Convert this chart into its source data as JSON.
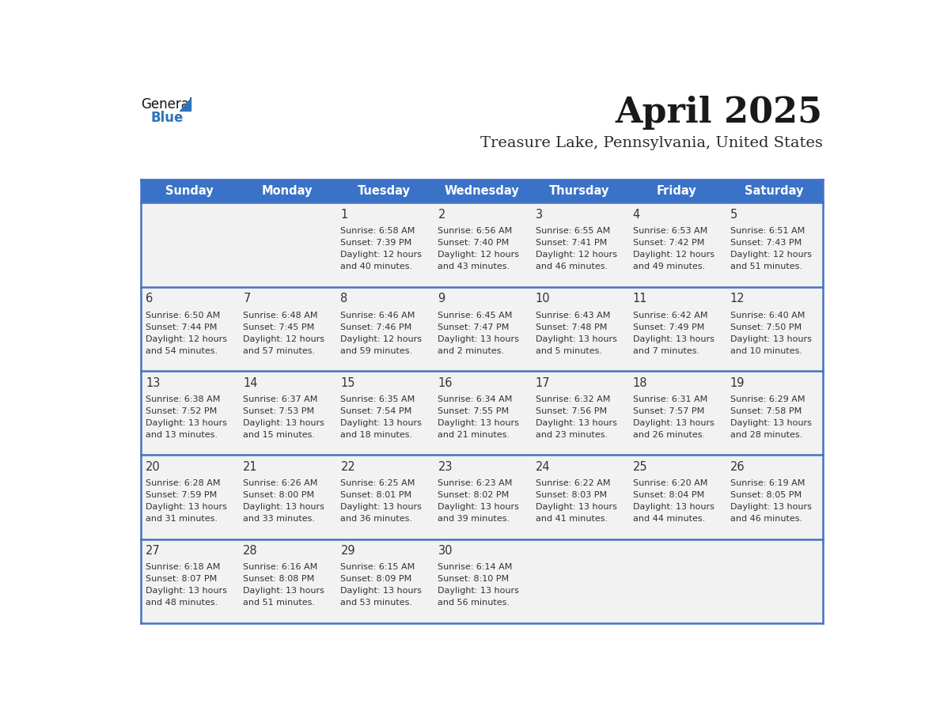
{
  "title": "April 2025",
  "subtitle": "Treasure Lake, Pennsylvania, United States",
  "day_names": [
    "Sunday",
    "Monday",
    "Tuesday",
    "Wednesday",
    "Thursday",
    "Friday",
    "Saturday"
  ],
  "header_color": "#3A72C8",
  "separator_color": "#4472C4",
  "row_bg": "#F2F2F2",
  "text_color": "#333333",
  "header_text_color": "#FFFFFF",
  "logo_triangle_color": "#2E75B6",
  "days": [
    {
      "day": "1",
      "col": 2,
      "row": 0,
      "sunrise": "Sunrise: 6:58 AM",
      "sunset": "Sunset: 7:39 PM",
      "dl1": "Daylight: 12 hours",
      "dl2": "and 40 minutes."
    },
    {
      "day": "2",
      "col": 3,
      "row": 0,
      "sunrise": "Sunrise: 6:56 AM",
      "sunset": "Sunset: 7:40 PM",
      "dl1": "Daylight: 12 hours",
      "dl2": "and 43 minutes."
    },
    {
      "day": "3",
      "col": 4,
      "row": 0,
      "sunrise": "Sunrise: 6:55 AM",
      "sunset": "Sunset: 7:41 PM",
      "dl1": "Daylight: 12 hours",
      "dl2": "and 46 minutes."
    },
    {
      "day": "4",
      "col": 5,
      "row": 0,
      "sunrise": "Sunrise: 6:53 AM",
      "sunset": "Sunset: 7:42 PM",
      "dl1": "Daylight: 12 hours",
      "dl2": "and 49 minutes."
    },
    {
      "day": "5",
      "col": 6,
      "row": 0,
      "sunrise": "Sunrise: 6:51 AM",
      "sunset": "Sunset: 7:43 PM",
      "dl1": "Daylight: 12 hours",
      "dl2": "and 51 minutes."
    },
    {
      "day": "6",
      "col": 0,
      "row": 1,
      "sunrise": "Sunrise: 6:50 AM",
      "sunset": "Sunset: 7:44 PM",
      "dl1": "Daylight: 12 hours",
      "dl2": "and 54 minutes."
    },
    {
      "day": "7",
      "col": 1,
      "row": 1,
      "sunrise": "Sunrise: 6:48 AM",
      "sunset": "Sunset: 7:45 PM",
      "dl1": "Daylight: 12 hours",
      "dl2": "and 57 minutes."
    },
    {
      "day": "8",
      "col": 2,
      "row": 1,
      "sunrise": "Sunrise: 6:46 AM",
      "sunset": "Sunset: 7:46 PM",
      "dl1": "Daylight: 12 hours",
      "dl2": "and 59 minutes."
    },
    {
      "day": "9",
      "col": 3,
      "row": 1,
      "sunrise": "Sunrise: 6:45 AM",
      "sunset": "Sunset: 7:47 PM",
      "dl1": "Daylight: 13 hours",
      "dl2": "and 2 minutes."
    },
    {
      "day": "10",
      "col": 4,
      "row": 1,
      "sunrise": "Sunrise: 6:43 AM",
      "sunset": "Sunset: 7:48 PM",
      "dl1": "Daylight: 13 hours",
      "dl2": "and 5 minutes."
    },
    {
      "day": "11",
      "col": 5,
      "row": 1,
      "sunrise": "Sunrise: 6:42 AM",
      "sunset": "Sunset: 7:49 PM",
      "dl1": "Daylight: 13 hours",
      "dl2": "and 7 minutes."
    },
    {
      "day": "12",
      "col": 6,
      "row": 1,
      "sunrise": "Sunrise: 6:40 AM",
      "sunset": "Sunset: 7:50 PM",
      "dl1": "Daylight: 13 hours",
      "dl2": "and 10 minutes."
    },
    {
      "day": "13",
      "col": 0,
      "row": 2,
      "sunrise": "Sunrise: 6:38 AM",
      "sunset": "Sunset: 7:52 PM",
      "dl1": "Daylight: 13 hours",
      "dl2": "and 13 minutes."
    },
    {
      "day": "14",
      "col": 1,
      "row": 2,
      "sunrise": "Sunrise: 6:37 AM",
      "sunset": "Sunset: 7:53 PM",
      "dl1": "Daylight: 13 hours",
      "dl2": "and 15 minutes."
    },
    {
      "day": "15",
      "col": 2,
      "row": 2,
      "sunrise": "Sunrise: 6:35 AM",
      "sunset": "Sunset: 7:54 PM",
      "dl1": "Daylight: 13 hours",
      "dl2": "and 18 minutes."
    },
    {
      "day": "16",
      "col": 3,
      "row": 2,
      "sunrise": "Sunrise: 6:34 AM",
      "sunset": "Sunset: 7:55 PM",
      "dl1": "Daylight: 13 hours",
      "dl2": "and 21 minutes."
    },
    {
      "day": "17",
      "col": 4,
      "row": 2,
      "sunrise": "Sunrise: 6:32 AM",
      "sunset": "Sunset: 7:56 PM",
      "dl1": "Daylight: 13 hours",
      "dl2": "and 23 minutes."
    },
    {
      "day": "18",
      "col": 5,
      "row": 2,
      "sunrise": "Sunrise: 6:31 AM",
      "sunset": "Sunset: 7:57 PM",
      "dl1": "Daylight: 13 hours",
      "dl2": "and 26 minutes."
    },
    {
      "day": "19",
      "col": 6,
      "row": 2,
      "sunrise": "Sunrise: 6:29 AM",
      "sunset": "Sunset: 7:58 PM",
      "dl1": "Daylight: 13 hours",
      "dl2": "and 28 minutes."
    },
    {
      "day": "20",
      "col": 0,
      "row": 3,
      "sunrise": "Sunrise: 6:28 AM",
      "sunset": "Sunset: 7:59 PM",
      "dl1": "Daylight: 13 hours",
      "dl2": "and 31 minutes."
    },
    {
      "day": "21",
      "col": 1,
      "row": 3,
      "sunrise": "Sunrise: 6:26 AM",
      "sunset": "Sunset: 8:00 PM",
      "dl1": "Daylight: 13 hours",
      "dl2": "and 33 minutes."
    },
    {
      "day": "22",
      "col": 2,
      "row": 3,
      "sunrise": "Sunrise: 6:25 AM",
      "sunset": "Sunset: 8:01 PM",
      "dl1": "Daylight: 13 hours",
      "dl2": "and 36 minutes."
    },
    {
      "day": "23",
      "col": 3,
      "row": 3,
      "sunrise": "Sunrise: 6:23 AM",
      "sunset": "Sunset: 8:02 PM",
      "dl1": "Daylight: 13 hours",
      "dl2": "and 39 minutes."
    },
    {
      "day": "24",
      "col": 4,
      "row": 3,
      "sunrise": "Sunrise: 6:22 AM",
      "sunset": "Sunset: 8:03 PM",
      "dl1": "Daylight: 13 hours",
      "dl2": "and 41 minutes."
    },
    {
      "day": "25",
      "col": 5,
      "row": 3,
      "sunrise": "Sunrise: 6:20 AM",
      "sunset": "Sunset: 8:04 PM",
      "dl1": "Daylight: 13 hours",
      "dl2": "and 44 minutes."
    },
    {
      "day": "26",
      "col": 6,
      "row": 3,
      "sunrise": "Sunrise: 6:19 AM",
      "sunset": "Sunset: 8:05 PM",
      "dl1": "Daylight: 13 hours",
      "dl2": "and 46 minutes."
    },
    {
      "day": "27",
      "col": 0,
      "row": 4,
      "sunrise": "Sunrise: 6:18 AM",
      "sunset": "Sunset: 8:07 PM",
      "dl1": "Daylight: 13 hours",
      "dl2": "and 48 minutes."
    },
    {
      "day": "28",
      "col": 1,
      "row": 4,
      "sunrise": "Sunrise: 6:16 AM",
      "sunset": "Sunset: 8:08 PM",
      "dl1": "Daylight: 13 hours",
      "dl2": "and 51 minutes."
    },
    {
      "day": "29",
      "col": 2,
      "row": 4,
      "sunrise": "Sunrise: 6:15 AM",
      "sunset": "Sunset: 8:09 PM",
      "dl1": "Daylight: 13 hours",
      "dl2": "and 53 minutes."
    },
    {
      "day": "30",
      "col": 3,
      "row": 4,
      "sunrise": "Sunrise: 6:14 AM",
      "sunset": "Sunset: 8:10 PM",
      "dl1": "Daylight: 13 hours",
      "dl2": "and 56 minutes."
    }
  ],
  "num_rows": 5,
  "fig_width": 11.88,
  "fig_height": 9.18,
  "dpi": 100
}
